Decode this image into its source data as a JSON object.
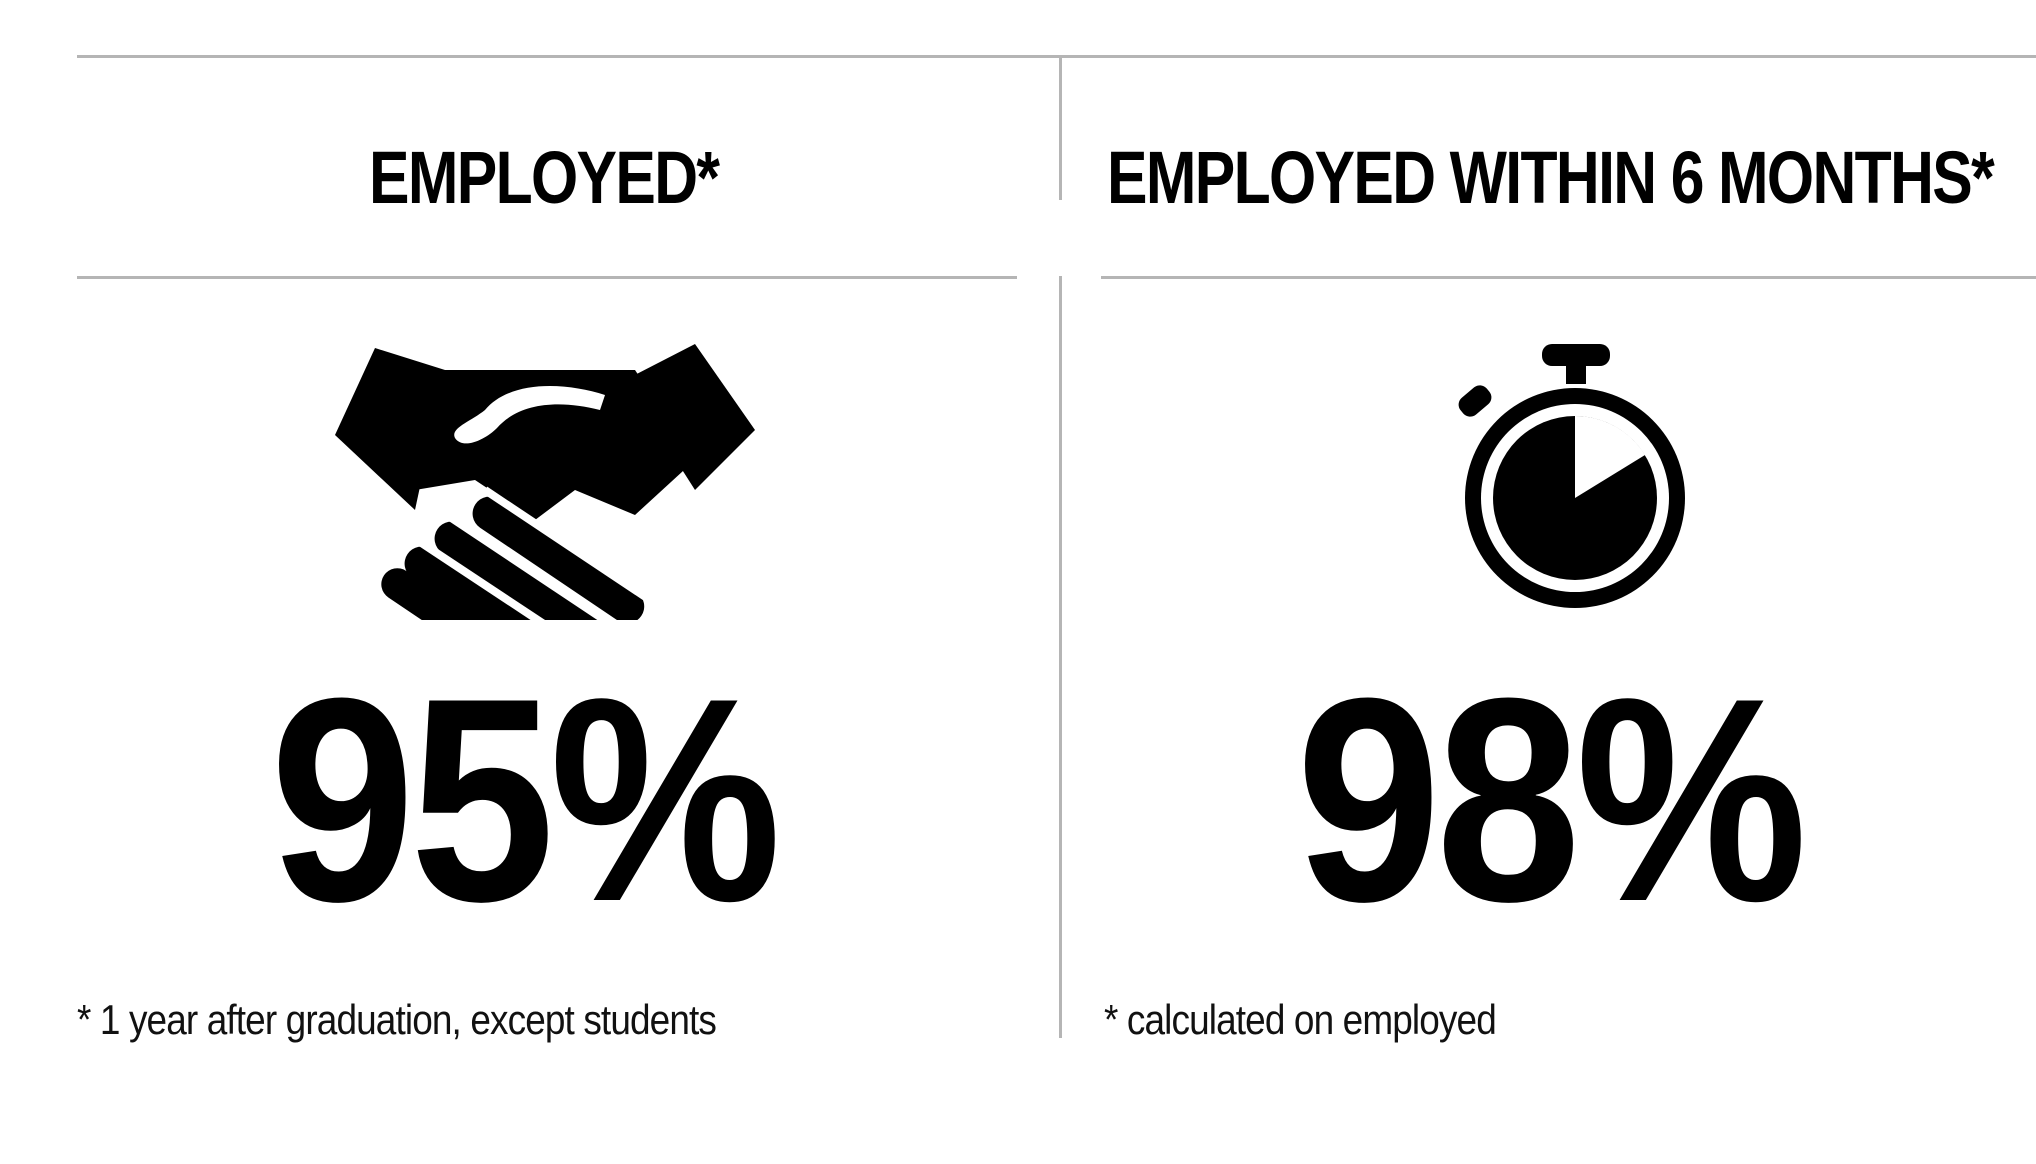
{
  "stats": [
    {
      "title": "EMPLOYED*",
      "value": "95%",
      "note": "* 1 year after graduation, except students",
      "icon": "handshake-icon"
    },
    {
      "title": "EMPLOYED WITHIN 6 MONTHS*",
      "value": "98%",
      "note": "* calculated on employed",
      "icon": "stopwatch-icon"
    }
  ],
  "colors": {
    "text": "#000000",
    "divider": "#b5b5b5",
    "background": "#ffffff"
  }
}
